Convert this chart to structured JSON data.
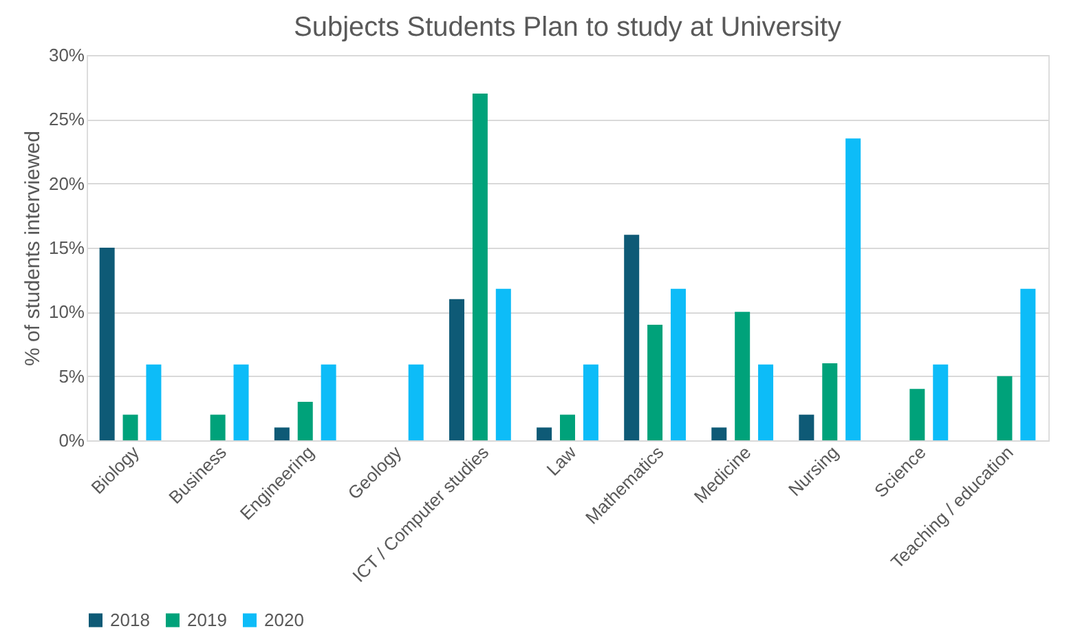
{
  "chart_data": {
    "type": "bar",
    "title": "Subjects Students Plan to study at University",
    "ylabel": "% of students interviewed",
    "categories": [
      "Biology",
      "Business",
      "Engineering",
      "Geology",
      "ICT / Computer studies",
      "Law",
      "Mathematics",
      "Medicine",
      "Nursing",
      "Science",
      "Teaching / education"
    ],
    "series": [
      {
        "name": "2018",
        "color": "#0e5a76",
        "values": [
          15,
          null,
          1,
          null,
          11,
          1,
          16,
          1,
          2,
          null,
          null
        ]
      },
      {
        "name": "2019",
        "color": "#00a27a",
        "values": [
          2,
          2,
          3,
          null,
          27,
          2,
          9,
          10,
          6,
          4,
          5
        ]
      },
      {
        "name": "2020",
        "color": "#0dbcf8",
        "values": [
          5.9,
          5.9,
          5.9,
          5.9,
          11.8,
          5.9,
          11.8,
          5.9,
          23.5,
          5.9,
          11.8
        ]
      }
    ],
    "ylim": [
      0,
      30
    ],
    "yticks": [
      {
        "value": 0,
        "label": "0%"
      },
      {
        "value": 5,
        "label": "5%"
      },
      {
        "value": 10,
        "label": "10%"
      },
      {
        "value": 15,
        "label": "15%"
      },
      {
        "value": 20,
        "label": "20%"
      },
      {
        "value": 25,
        "label": "25%"
      },
      {
        "value": 30,
        "label": "30%"
      }
    ],
    "grid": "y",
    "legend": "bottom"
  }
}
